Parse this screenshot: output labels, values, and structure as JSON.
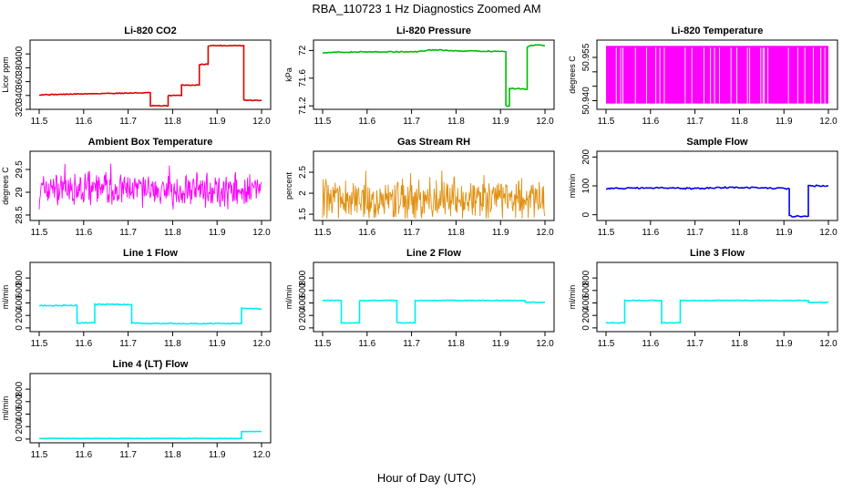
{
  "figure": {
    "title": "RBA_110723  1 Hz Diagnostics Zoomed AM",
    "xlabel": "Hour of Day (UTC)"
  },
  "chart_data": [
    {
      "type": "line",
      "title": "Li-820 CO2",
      "ylabel": "Licor ppm",
      "color": "#dd0000",
      "xlim": [
        11.5,
        12.0
      ],
      "ylim": [
        320,
        420
      ],
      "yticks": [
        320,
        340,
        360,
        380,
        400
      ],
      "xticks": [
        11.5,
        11.6,
        11.7,
        11.8,
        11.9,
        12.0
      ],
      "noise": 0.6,
      "series": [
        [
          11.5,
          341
        ],
        [
          11.65,
          343
        ],
        [
          11.75,
          344
        ],
        [
          11.75,
          325
        ],
        [
          11.79,
          325
        ],
        [
          11.79,
          340
        ],
        [
          11.82,
          340
        ],
        [
          11.82,
          355
        ],
        [
          11.86,
          355
        ],
        [
          11.86,
          385
        ],
        [
          11.88,
          385
        ],
        [
          11.88,
          412
        ],
        [
          11.96,
          412
        ],
        [
          11.96,
          333
        ],
        [
          12.0,
          333
        ]
      ]
    },
    {
      "type": "line",
      "title": "Li-820 Pressure",
      "ylabel": "kPa",
      "color": "#00bb00",
      "xlim": [
        11.5,
        12.0
      ],
      "ylim": [
        71.15,
        72.15
      ],
      "yticks": [
        71.2,
        71.6,
        72.0
      ],
      "xticks": [
        11.5,
        11.6,
        11.7,
        11.8,
        11.9,
        12.0
      ],
      "noise": 0.008,
      "series": [
        [
          11.5,
          71.97
        ],
        [
          11.6,
          71.98
        ],
        [
          11.62,
          71.98
        ],
        [
          11.7,
          71.98
        ],
        [
          11.72,
          71.99
        ],
        [
          11.75,
          72.01
        ],
        [
          11.8,
          71.99
        ],
        [
          11.9,
          71.99
        ],
        [
          11.912,
          71.98
        ],
        [
          11.912,
          71.2
        ],
        [
          11.92,
          71.2
        ],
        [
          11.92,
          71.45
        ],
        [
          11.95,
          71.45
        ],
        [
          11.96,
          71.44
        ],
        [
          11.96,
          72.05
        ],
        [
          11.97,
          72.08
        ],
        [
          12.0,
          72.07
        ]
      ]
    },
    {
      "type": "line",
      "title": "Li-820 Temperature",
      "ylabel": "degrees C",
      "color": "#ff00ff",
      "style": "dense",
      "xlim": [
        11.5,
        12.0
      ],
      "ylim": [
        50.937,
        50.961
      ],
      "yticks": [
        50.94,
        50.945,
        50.95,
        50.955
      ],
      "ytick_labels": [
        "50.940",
        "",
        "",
        "50.955"
      ],
      "xticks": [
        11.5,
        11.6,
        11.7,
        11.8,
        11.9,
        12.0
      ],
      "low": 50.939,
      "high": 50.959,
      "gaps": [
        11.523,
        11.533,
        11.538,
        11.566,
        11.591,
        11.612,
        11.621,
        11.631,
        11.678,
        11.693,
        11.72,
        11.735,
        11.744,
        11.755,
        11.781,
        11.794,
        11.818,
        11.823,
        11.848,
        11.853,
        11.856,
        11.864,
        11.91,
        11.931,
        11.947,
        11.966,
        11.983,
        11.992
      ]
    },
    {
      "type": "line",
      "title": "Ambient Box Temperature",
      "ylabel": "degrees C",
      "color": "#ff00ff",
      "style": "noisy",
      "xlim": [
        11.5,
        12.0
      ],
      "ylim": [
        28.38,
        29.9
      ],
      "yticks": [
        28.5,
        29.0,
        29.5
      ],
      "xticks": [
        11.5,
        11.6,
        11.7,
        11.8,
        11.9,
        12.0
      ],
      "center": 29.05,
      "amp": 0.45,
      "lo": 28.45,
      "hi": 29.75,
      "seed": 7
    },
    {
      "type": "line",
      "title": "Gas Stream RH",
      "ylabel": "percent",
      "color": "#e09010",
      "style": "noisy",
      "xlim": [
        11.5,
        12.0
      ],
      "ylim": [
        1.35,
        3.0
      ],
      "yticks": [
        1.5,
        2.0,
        2.5
      ],
      "xticks": [
        11.5,
        11.6,
        11.7,
        11.8,
        11.9,
        12.0
      ],
      "center": 1.85,
      "amp": 0.55,
      "lo": 1.4,
      "hi": 2.85,
      "seed": 13
    },
    {
      "type": "line",
      "title": "Sample Flow",
      "ylabel": "ml/min",
      "color": "#0000ee",
      "xlim": [
        11.5,
        12.0
      ],
      "ylim": [
        -20,
        220
      ],
      "yticks": [
        0,
        100,
        200
      ],
      "xticks": [
        11.5,
        11.6,
        11.7,
        11.8,
        11.9,
        12.0
      ],
      "noise": 2.5,
      "series": [
        [
          11.5,
          91
        ],
        [
          11.6,
          93
        ],
        [
          11.7,
          91
        ],
        [
          11.78,
          95
        ],
        [
          11.9,
          91
        ],
        [
          11.912,
          90
        ],
        [
          11.912,
          -5
        ],
        [
          11.955,
          -5
        ],
        [
          11.955,
          100
        ],
        [
          12.0,
          100
        ]
      ]
    },
    {
      "type": "line",
      "title": "Line 1 Flow",
      "ylabel": "ml/min",
      "color": "#00eeee",
      "xlim": [
        11.5,
        12.0
      ],
      "ylim": [
        -60,
        1050
      ],
      "yticks": [
        0,
        200,
        400,
        600,
        800
      ],
      "xticks": [
        11.5,
        11.6,
        11.7,
        11.8,
        11.9,
        12.0
      ],
      "noise": 8,
      "series": [
        [
          11.5,
          360
        ],
        [
          11.585,
          360
        ],
        [
          11.585,
          80
        ],
        [
          11.625,
          80
        ],
        [
          11.625,
          380
        ],
        [
          11.708,
          375
        ],
        [
          11.708,
          80
        ],
        [
          11.75,
          70
        ],
        [
          11.955,
          70
        ],
        [
          11.955,
          310
        ],
        [
          12.0,
          305
        ]
      ]
    },
    {
      "type": "line",
      "title": "Line 2 Flow",
      "ylabel": "ml/min",
      "color": "#00eeee",
      "xlim": [
        11.5,
        12.0
      ],
      "ylim": [
        -60,
        1050
      ],
      "yticks": [
        0,
        200,
        400,
        600,
        800
      ],
      "xticks": [
        11.5,
        11.6,
        11.7,
        11.8,
        11.9,
        12.0
      ],
      "noise": 5,
      "series": [
        [
          11.5,
          440
        ],
        [
          11.542,
          440
        ],
        [
          11.542,
          80
        ],
        [
          11.583,
          80
        ],
        [
          11.583,
          440
        ],
        [
          11.667,
          440
        ],
        [
          11.667,
          80
        ],
        [
          11.708,
          80
        ],
        [
          11.708,
          440
        ],
        [
          11.955,
          440
        ],
        [
          11.955,
          410
        ],
        [
          12.0,
          410
        ]
      ]
    },
    {
      "type": "line",
      "title": "Line 3 Flow",
      "ylabel": "ml/min",
      "color": "#00eeee",
      "xlim": [
        11.5,
        12.0
      ],
      "ylim": [
        -60,
        1050
      ],
      "yticks": [
        0,
        200,
        400,
        600,
        800
      ],
      "xticks": [
        11.5,
        11.6,
        11.7,
        11.8,
        11.9,
        12.0
      ],
      "noise": 5,
      "series": [
        [
          11.5,
          80
        ],
        [
          11.542,
          80
        ],
        [
          11.542,
          440
        ],
        [
          11.625,
          440
        ],
        [
          11.625,
          80
        ],
        [
          11.667,
          80
        ],
        [
          11.667,
          440
        ],
        [
          11.955,
          440
        ],
        [
          11.955,
          410
        ],
        [
          12.0,
          410
        ]
      ]
    },
    {
      "type": "line",
      "title": "Line 4 (LT) Flow",
      "ylabel": "ml/min",
      "color": "#00eeee",
      "xlim": [
        11.5,
        12.0
      ],
      "ylim": [
        -60,
        1050
      ],
      "yticks": [
        0,
        200,
        400,
        600,
        800
      ],
      "xticks": [
        11.5,
        11.6,
        11.7,
        11.8,
        11.9,
        12.0
      ],
      "noise": 2,
      "series": [
        [
          11.5,
          10
        ],
        [
          11.955,
          10
        ],
        [
          11.955,
          120
        ],
        [
          12.0,
          120
        ]
      ]
    }
  ]
}
